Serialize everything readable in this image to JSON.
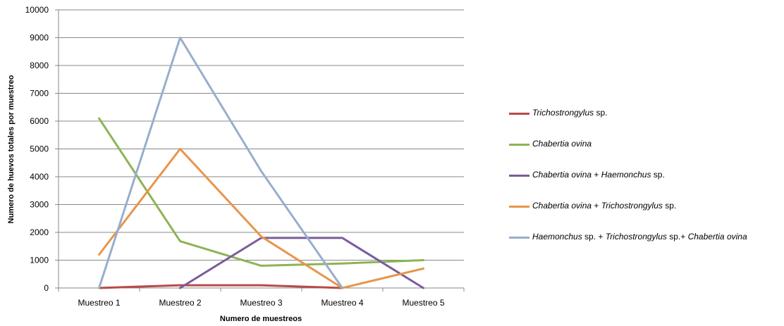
{
  "chart_data": {
    "type": "line",
    "categories": [
      "Muestreo 1",
      "Muestreo 2",
      "Muestreo 3",
      "Muestreo 4",
      "Muestreo 5"
    ],
    "xlabel": "Numero de muestreos",
    "ylabel": "Numero de huevos totales por muestreo",
    "ylim": [
      0,
      10000
    ],
    "yticks": [
      0,
      1000,
      2000,
      3000,
      4000,
      5000,
      6000,
      7000,
      8000,
      9000,
      10000
    ],
    "grid": true,
    "legend_position": "right",
    "series": [
      {
        "name": "Trichostrongylus sp.",
        "color": "#b84a47",
        "label_parts": [
          {
            "text": "Trichostrongylus",
            "italic": true
          },
          {
            "text": " sp.",
            "italic": false
          }
        ],
        "values": [
          0,
          100,
          100,
          0,
          null
        ]
      },
      {
        "name": "Chabertia ovina",
        "color": "#8cb454",
        "label_parts": [
          {
            "text": "Chabertia ovina",
            "italic": true
          }
        ],
        "values": [
          6100,
          1680,
          800,
          880,
          1000
        ]
      },
      {
        "name": "Chabertia ovina + Haemonchus sp.",
        "color": "#7a5c9b",
        "label_parts": [
          {
            "text": "Chabertia ovina",
            "italic": true
          },
          {
            "text": " + ",
            "italic": false
          },
          {
            "text": "Haemonchus",
            "italic": true
          },
          {
            "text": " sp.",
            "italic": false
          }
        ],
        "values": [
          null,
          0,
          1800,
          1800,
          0
        ]
      },
      {
        "name": "Chabertia ovina + Trichostrongylus sp.",
        "color": "#e8954a",
        "label_parts": [
          {
            "text": "Chabertia ovina",
            "italic": true
          },
          {
            "text": " + ",
            "italic": false
          },
          {
            "text": "Trichostrongylus",
            "italic": true
          },
          {
            "text": " sp.",
            "italic": false
          }
        ],
        "values": [
          1200,
          5000,
          1850,
          0,
          700
        ]
      },
      {
        "name": "Haemonchus sp. + Trichostrongylus sp.+ Chabertia ovina",
        "color": "#97aecd",
        "label_parts": [
          {
            "text": "Haemonchus",
            "italic": true
          },
          {
            "text": " sp. + ",
            "italic": false
          },
          {
            "text": "Trichostrongylus",
            "italic": true
          },
          {
            "text": " sp.+ ",
            "italic": false
          },
          {
            "text": "Chabertia ovina",
            "italic": true
          }
        ],
        "values": [
          0,
          9000,
          4200,
          0,
          null
        ]
      }
    ]
  }
}
